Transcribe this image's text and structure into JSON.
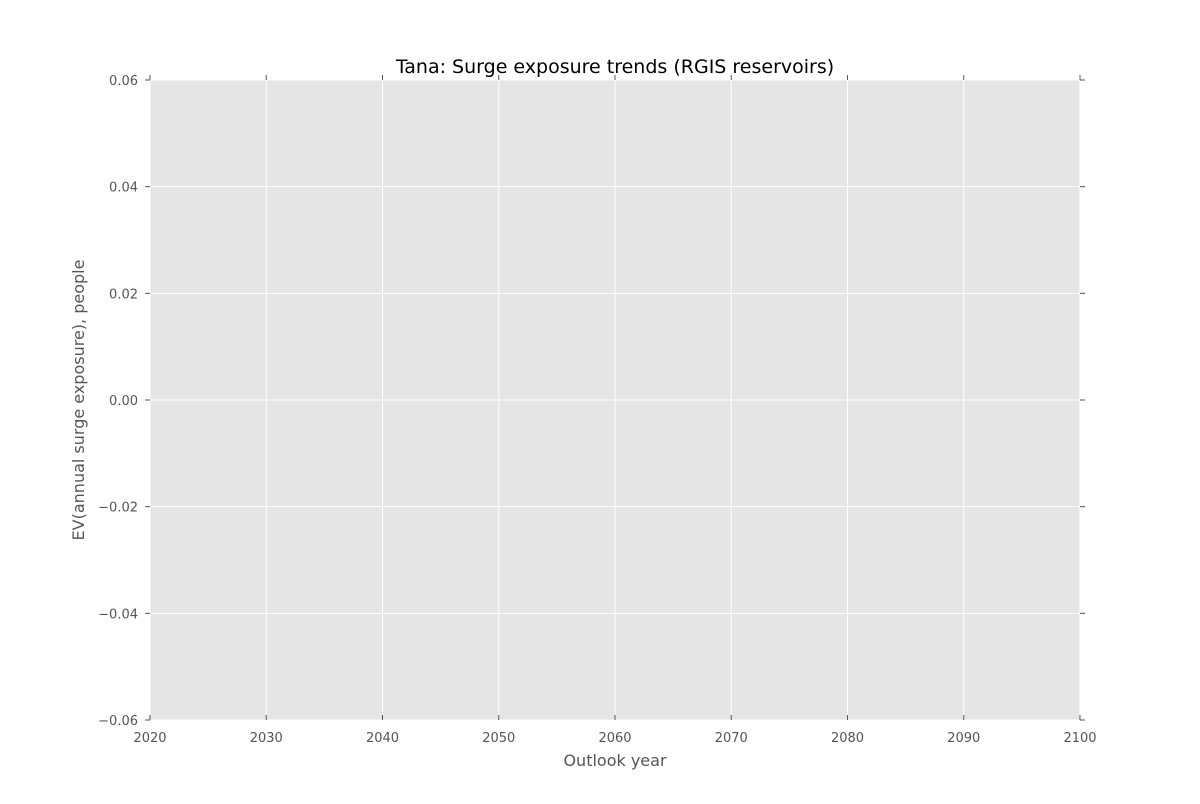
{
  "chart_data": {
    "type": "line",
    "title": "Tana: Surge exposure trends (RGIS reservoirs)",
    "xlabel": "Outlook year",
    "ylabel": "EV(annual surge exposure), people",
    "xlim": [
      2020,
      2100
    ],
    "ylim": [
      -0.06,
      0.06
    ],
    "x_ticks": [
      2020,
      2030,
      2040,
      2050,
      2060,
      2070,
      2080,
      2090,
      2100
    ],
    "x_tick_labels": [
      "2020",
      "2030",
      "2040",
      "2050",
      "2060",
      "2070",
      "2080",
      "2090",
      "2100"
    ],
    "y_ticks": [
      -0.06,
      -0.04,
      -0.02,
      0.0,
      0.02,
      0.04,
      0.06
    ],
    "y_tick_labels": [
      "−0.06",
      "−0.04",
      "−0.02",
      "0.00",
      "0.02",
      "0.04",
      "0.06"
    ],
    "series": [],
    "grid": true,
    "legend": "none",
    "colors": {
      "plot_background": "#e5e5e5",
      "grid": "#ffffff",
      "tick_label": "#555555",
      "axis_label": "#555555",
      "title": "#000000",
      "tick_mark": "#555555"
    }
  }
}
